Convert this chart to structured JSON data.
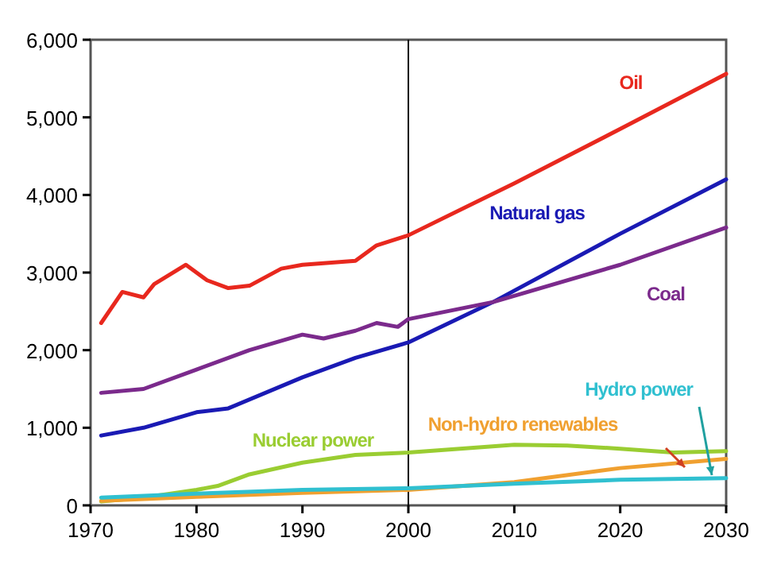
{
  "chart_data": {
    "type": "line",
    "xlim": [
      1970,
      2030
    ],
    "xticks": [
      1970,
      1980,
      1990,
      2000,
      2010,
      2020,
      2030
    ],
    "ylim": [
      0,
      6000
    ],
    "yticks": [
      {
        "value": 0,
        "label": "0"
      },
      {
        "value": 1000,
        "label": "1,000"
      },
      {
        "value": 2000,
        "label": "2,000"
      },
      {
        "value": 3000,
        "label": "3,000"
      },
      {
        "value": 4000,
        "label": "4,000"
      },
      {
        "value": 5000,
        "label": "5,000"
      },
      {
        "value": 6000,
        "label": "6,000"
      }
    ],
    "grid": false,
    "line_style": "solid",
    "marker": "none",
    "ref_lines": [
      {
        "axis": "x",
        "value": 2000,
        "color": "#000000"
      }
    ],
    "series": [
      {
        "name": "Oil",
        "color": "#e8281e",
        "x": [
          1971,
          1973,
          1975,
          1976,
          1979,
          1981,
          1983,
          1985,
          1988,
          1990,
          1995,
          1997,
          2000,
          2010,
          2020,
          2030
        ],
        "values": [
          2350,
          2750,
          2680,
          2850,
          3100,
          2900,
          2800,
          2830,
          3050,
          3100,
          3150,
          3350,
          3480,
          4150,
          4850,
          5560
        ]
      },
      {
        "name": "Natural gas",
        "color": "#1a1ab4",
        "x": [
          1971,
          1975,
          1980,
          1983,
          1990,
          1995,
          2000,
          2008,
          2020,
          2030
        ],
        "values": [
          900,
          1000,
          1200,
          1250,
          1650,
          1900,
          2100,
          2620,
          3500,
          4200
        ]
      },
      {
        "name": "Coal",
        "color": "#7b2a8c",
        "x": [
          1971,
          1975,
          1980,
          1985,
          1990,
          1992,
          1995,
          1997,
          1999,
          2000,
          2008,
          2020,
          2030
        ],
        "values": [
          1450,
          1500,
          1750,
          2000,
          2200,
          2150,
          2250,
          2350,
          2300,
          2400,
          2620,
          3100,
          3580
        ]
      },
      {
        "name": "Nuclear power",
        "color": "#9acd32",
        "x": [
          1971,
          1975,
          1980,
          1982,
          1985,
          1990,
          1995,
          2000,
          2010,
          2015,
          2020,
          2025,
          2030
        ],
        "values": [
          50,
          100,
          200,
          250,
          400,
          550,
          650,
          680,
          780,
          770,
          730,
          680,
          700
        ]
      },
      {
        "name": "Non-hydro renewables",
        "color": "#f0a030",
        "x": [
          1971,
          1980,
          1990,
          2000,
          2010,
          2020,
          2030
        ],
        "values": [
          60,
          110,
          160,
          200,
          300,
          480,
          600
        ]
      },
      {
        "name": "Hydro power",
        "color": "#30c0d0",
        "x": [
          1971,
          1980,
          1990,
          2000,
          2010,
          2020,
          2030
        ],
        "values": [
          100,
          150,
          200,
          220,
          280,
          330,
          350
        ]
      }
    ]
  }
}
